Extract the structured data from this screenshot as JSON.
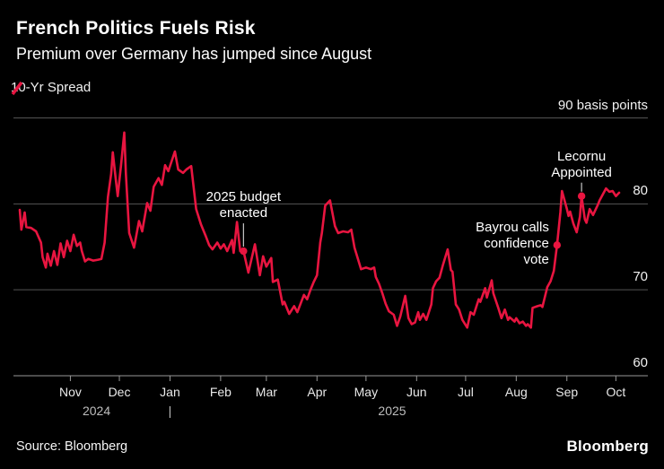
{
  "header": {
    "title": "French Politics Fuels Risk",
    "subtitle": "Premium over Germany has jumped since August"
  },
  "legend": {
    "label": "10-Yr Spread"
  },
  "footer": {
    "source": "Source: Bloomberg",
    "logo": "Bloomberg"
  },
  "colors": {
    "background": "#000000",
    "line": "#e81540",
    "grid": "#545454",
    "axis": "#989898",
    "leader": "#c8c8c8",
    "text": "#ffffff"
  },
  "chart_data": {
    "type": "line",
    "title": "French Politics Fuels Risk",
    "subtitle": "Premium over Germany has jumped since August",
    "ylabel": "basis points",
    "xlabel": "",
    "ylim": [
      60,
      90
    ],
    "x_domain": [
      "2024-10-01",
      "2025-10-03"
    ],
    "grid": true,
    "legend_position": "top-left",
    "yticks": [
      {
        "value": 90,
        "label": "90 basis points"
      },
      {
        "value": 80,
        "label": "80"
      },
      {
        "value": 70,
        "label": "70"
      },
      {
        "value": 60,
        "label": "60"
      }
    ],
    "xticks": [
      {
        "date": "2024-11-01",
        "label": "Nov"
      },
      {
        "date": "2024-12-01",
        "label": "Dec"
      },
      {
        "date": "2025-01-01",
        "label": "Jan"
      },
      {
        "date": "2025-02-01",
        "label": "Feb"
      },
      {
        "date": "2025-03-01",
        "label": "Mar"
      },
      {
        "date": "2025-04-01",
        "label": "Apr"
      },
      {
        "date": "2025-05-01",
        "label": "May"
      },
      {
        "date": "2025-06-01",
        "label": "Jun"
      },
      {
        "date": "2025-07-01",
        "label": "Jul"
      },
      {
        "date": "2025-08-01",
        "label": "Aug"
      },
      {
        "date": "2025-09-01",
        "label": "Sep"
      },
      {
        "date": "2025-10-01",
        "label": "Oct"
      }
    ],
    "year_labels": [
      {
        "label": "2024",
        "date": "2024-11-17"
      },
      {
        "label": "|",
        "date": "2025-01-01"
      },
      {
        "label": "2025",
        "date": "2025-05-17"
      }
    ],
    "annotations": [
      {
        "id": "budget",
        "lines": [
          "2025 budget",
          "enacted"
        ],
        "date": "2025-02-15",
        "value": 74.5,
        "placement": "above"
      },
      {
        "id": "bayrou",
        "lines": [
          "Bayrou calls",
          "confidence",
          "vote"
        ],
        "date": "2025-08-26",
        "value": 75.2,
        "placement": "left"
      },
      {
        "id": "lecornu",
        "lines": [
          "Lecornu",
          "Appointed"
        ],
        "date": "2025-09-10",
        "value": 80.9,
        "placement": "above"
      }
    ],
    "series": [
      {
        "name": "10-Yr Spread",
        "color": "#e81540",
        "points": [
          [
            "2024-10-01",
            79.3
          ],
          [
            "2024-10-02",
            77.0
          ],
          [
            "2024-10-04",
            79.0
          ],
          [
            "2024-10-05",
            77.3
          ],
          [
            "2024-10-08",
            77.2
          ],
          [
            "2024-10-11",
            76.8
          ],
          [
            "2024-10-14",
            75.5
          ],
          [
            "2024-10-15",
            73.8
          ],
          [
            "2024-10-17",
            72.6
          ],
          [
            "2024-10-18",
            74.2
          ],
          [
            "2024-10-20",
            72.8
          ],
          [
            "2024-10-22",
            74.5
          ],
          [
            "2024-10-24",
            72.9
          ],
          [
            "2024-10-26",
            75.4
          ],
          [
            "2024-10-28",
            73.8
          ],
          [
            "2024-10-30",
            75.7
          ],
          [
            "2024-11-01",
            74.5
          ],
          [
            "2024-11-03",
            76.4
          ],
          [
            "2024-11-05",
            75.1
          ],
          [
            "2024-11-07",
            75.5
          ],
          [
            "2024-11-08",
            74.5
          ],
          [
            "2024-11-10",
            73.3
          ],
          [
            "2024-11-12",
            73.6
          ],
          [
            "2024-11-15",
            73.4
          ],
          [
            "2024-11-18",
            73.5
          ],
          [
            "2024-11-20",
            73.6
          ],
          [
            "2024-11-22",
            75.5
          ],
          [
            "2024-11-24",
            80.8
          ],
          [
            "2024-11-26",
            83.5
          ],
          [
            "2024-11-27",
            86.0
          ],
          [
            "2024-11-29",
            82.5
          ],
          [
            "2024-11-30",
            80.9
          ],
          [
            "2024-12-02",
            84.5
          ],
          [
            "2024-12-04",
            88.3
          ],
          [
            "2024-12-05",
            83.5
          ],
          [
            "2024-12-07",
            76.6
          ],
          [
            "2024-12-10",
            74.9
          ],
          [
            "2024-12-13",
            78.0
          ],
          [
            "2024-12-15",
            76.8
          ],
          [
            "2024-12-18",
            80.1
          ],
          [
            "2024-12-20",
            79.2
          ],
          [
            "2024-12-22",
            82.0
          ],
          [
            "2024-12-25",
            83.0
          ],
          [
            "2024-12-27",
            82.2
          ],
          [
            "2024-12-29",
            84.5
          ],
          [
            "2024-12-31",
            83.8
          ],
          [
            "2025-01-04",
            86.1
          ],
          [
            "2025-01-06",
            84.0
          ],
          [
            "2025-01-09",
            83.6
          ],
          [
            "2025-01-11",
            84.0
          ],
          [
            "2025-01-14",
            84.4
          ],
          [
            "2025-01-17",
            79.4
          ],
          [
            "2025-01-20",
            77.6
          ],
          [
            "2025-01-23",
            76.2
          ],
          [
            "2025-01-25",
            75.2
          ],
          [
            "2025-01-27",
            74.7
          ],
          [
            "2025-01-30",
            75.5
          ],
          [
            "2025-02-01",
            74.8
          ],
          [
            "2025-02-03",
            75.3
          ],
          [
            "2025-02-05",
            74.5
          ],
          [
            "2025-02-08",
            75.8
          ],
          [
            "2025-02-09",
            74.3
          ],
          [
            "2025-02-11",
            77.9
          ],
          [
            "2025-02-13",
            74.5
          ],
          [
            "2025-02-15",
            74.5
          ],
          [
            "2025-02-18",
            72.0
          ],
          [
            "2025-02-22",
            75.3
          ],
          [
            "2025-02-25",
            71.7
          ],
          [
            "2025-02-27",
            73.9
          ],
          [
            "2025-03-01",
            72.7
          ],
          [
            "2025-03-04",
            73.7
          ],
          [
            "2025-03-05",
            70.9
          ],
          [
            "2025-03-08",
            71.2
          ],
          [
            "2025-03-11",
            68.3
          ],
          [
            "2025-03-12",
            68.6
          ],
          [
            "2025-03-15",
            67.2
          ],
          [
            "2025-03-18",
            68.1
          ],
          [
            "2025-03-20",
            67.4
          ],
          [
            "2025-03-24",
            69.4
          ],
          [
            "2025-03-26",
            68.9
          ],
          [
            "2025-03-28",
            70.0
          ],
          [
            "2025-03-30",
            70.9
          ],
          [
            "2025-04-01",
            71.7
          ],
          [
            "2025-04-03",
            75.5
          ],
          [
            "2025-04-04",
            76.6
          ],
          [
            "2025-04-06",
            79.8
          ],
          [
            "2025-04-09",
            80.4
          ],
          [
            "2025-04-12",
            77.4
          ],
          [
            "2025-04-14",
            76.6
          ],
          [
            "2025-04-17",
            76.8
          ],
          [
            "2025-04-20",
            76.7
          ],
          [
            "2025-04-22",
            77.0
          ],
          [
            "2025-04-24",
            74.9
          ],
          [
            "2025-04-28",
            72.4
          ],
          [
            "2025-05-01",
            72.6
          ],
          [
            "2025-05-04",
            72.4
          ],
          [
            "2025-05-06",
            72.6
          ],
          [
            "2025-05-07",
            71.5
          ],
          [
            "2025-05-09",
            70.7
          ],
          [
            "2025-05-11",
            69.6
          ],
          [
            "2025-05-13",
            68.4
          ],
          [
            "2025-05-15",
            67.5
          ],
          [
            "2025-05-18",
            67.1
          ],
          [
            "2025-05-20",
            65.8
          ],
          [
            "2025-05-22",
            66.9
          ],
          [
            "2025-05-25",
            69.3
          ],
          [
            "2025-05-27",
            66.7
          ],
          [
            "2025-05-29",
            66.0
          ],
          [
            "2025-05-31",
            66.2
          ],
          [
            "2025-06-02",
            67.4
          ],
          [
            "2025-06-03",
            66.5
          ],
          [
            "2025-06-05",
            67.2
          ],
          [
            "2025-06-07",
            66.5
          ],
          [
            "2025-06-10",
            68.3
          ],
          [
            "2025-06-11",
            70.2
          ],
          [
            "2025-06-13",
            71.0
          ],
          [
            "2025-06-15",
            71.4
          ],
          [
            "2025-06-17",
            72.8
          ],
          [
            "2025-06-20",
            74.7
          ],
          [
            "2025-06-22",
            72.3
          ],
          [
            "2025-06-23",
            72.1
          ],
          [
            "2025-06-25",
            68.3
          ],
          [
            "2025-06-27",
            67.7
          ],
          [
            "2025-06-29",
            66.5
          ],
          [
            "2025-07-02",
            65.6
          ],
          [
            "2025-07-04",
            67.4
          ],
          [
            "2025-07-06",
            67.1
          ],
          [
            "2025-07-09",
            68.9
          ],
          [
            "2025-07-10",
            68.6
          ],
          [
            "2025-07-13",
            70.2
          ],
          [
            "2025-07-14",
            69.1
          ],
          [
            "2025-07-17",
            71.1
          ],
          [
            "2025-07-18",
            69.6
          ],
          [
            "2025-07-21",
            67.9
          ],
          [
            "2025-07-23",
            66.7
          ],
          [
            "2025-07-25",
            67.7
          ],
          [
            "2025-07-27",
            66.5
          ],
          [
            "2025-07-28",
            66.8
          ],
          [
            "2025-07-31",
            66.3
          ],
          [
            "2025-08-01",
            66.7
          ],
          [
            "2025-08-03",
            66.1
          ],
          [
            "2025-08-05",
            66.3
          ],
          [
            "2025-08-07",
            65.8
          ],
          [
            "2025-08-08",
            66.0
          ],
          [
            "2025-08-10",
            65.6
          ],
          [
            "2025-08-11",
            67.9
          ],
          [
            "2025-08-14",
            68.1
          ],
          [
            "2025-08-16",
            68.2
          ],
          [
            "2025-08-17",
            68.0
          ],
          [
            "2025-08-20",
            70.3
          ],
          [
            "2025-08-22",
            71.0
          ],
          [
            "2025-08-24",
            72.2
          ],
          [
            "2025-08-26",
            75.2
          ],
          [
            "2025-08-28",
            79.0
          ],
          [
            "2025-08-29",
            81.5
          ],
          [
            "2025-09-01",
            79.4
          ],
          [
            "2025-09-02",
            78.6
          ],
          [
            "2025-09-03",
            79.1
          ],
          [
            "2025-09-05",
            77.7
          ],
          [
            "2025-09-07",
            76.7
          ],
          [
            "2025-09-09",
            78.5
          ],
          [
            "2025-09-10",
            80.9
          ],
          [
            "2025-09-12",
            78.2
          ],
          [
            "2025-09-13",
            77.8
          ],
          [
            "2025-09-15",
            79.4
          ],
          [
            "2025-09-17",
            78.7
          ],
          [
            "2025-09-20",
            79.9
          ],
          [
            "2025-09-21",
            80.4
          ],
          [
            "2025-09-25",
            81.8
          ],
          [
            "2025-09-27",
            81.4
          ],
          [
            "2025-09-29",
            81.5
          ],
          [
            "2025-10-01",
            80.9
          ],
          [
            "2025-10-03",
            81.3
          ]
        ]
      }
    ]
  }
}
